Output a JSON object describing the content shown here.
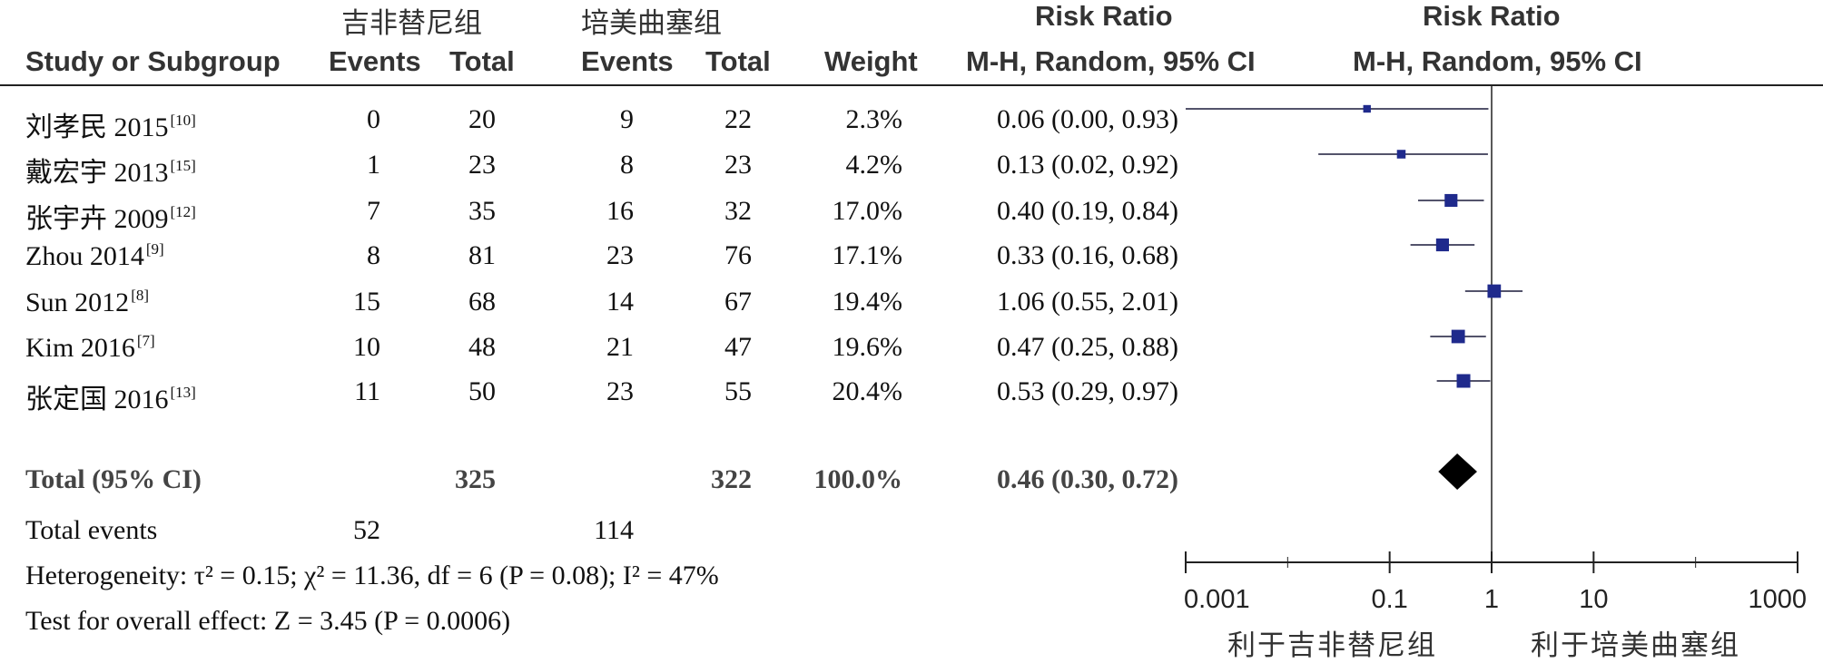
{
  "header": {
    "group1": "吉非替尼组",
    "group2": "培美曲塞组",
    "rr_title_table": "Risk Ratio",
    "rr_title_plot": "Risk Ratio",
    "col_study": "Study or Subgroup",
    "col_events1": "Events",
    "col_total1": "Total",
    "col_events2": "Events",
    "col_total2": "Total",
    "col_weight": "Weight",
    "col_method_table": "M-H, Random, 95% CI",
    "col_method_plot": "M-H, Random, 95% CI"
  },
  "studies": [
    {
      "name": "刘孝民 2015",
      "ref": "[10]",
      "e1": "0",
      "t1": "20",
      "e2": "9",
      "t2": "22",
      "weight": "2.3%",
      "ci": "0.06 (0.00, 0.93)"
    },
    {
      "name": "戴宏宇 2013",
      "ref": "[15]",
      "e1": "1",
      "t1": "23",
      "e2": "8",
      "t2": "23",
      "weight": "4.2%",
      "ci": "0.13 (0.02, 0.92)"
    },
    {
      "name": "张宇卉 2009",
      "ref": "[12]",
      "e1": "7",
      "t1": "35",
      "e2": "16",
      "t2": "32",
      "weight": "17.0%",
      "ci": "0.40 (0.19, 0.84)"
    },
    {
      "name": "Zhou 2014",
      "ref": "[9]",
      "e1": "8",
      "t1": "81",
      "e2": "23",
      "t2": "76",
      "weight": "17.1%",
      "ci": "0.33 (0.16, 0.68)"
    },
    {
      "name": "Sun 2012",
      "ref": "[8]",
      "e1": "15",
      "t1": "68",
      "e2": "14",
      "t2": "67",
      "weight": "19.4%",
      "ci": "1.06 (0.55, 2.01)"
    },
    {
      "name": "Kim 2016",
      "ref": "[7]",
      "e1": "10",
      "t1": "48",
      "e2": "21",
      "t2": "47",
      "weight": "19.6%",
      "ci": "0.47 (0.25, 0.88)"
    },
    {
      "name": "张定国 2016",
      "ref": "[13]",
      "e1": "11",
      "t1": "50",
      "e2": "23",
      "t2": "55",
      "weight": "20.4%",
      "ci": "0.53 (0.29, 0.97)"
    }
  ],
  "total": {
    "label": "Total (95% CI)",
    "t1": "325",
    "t2": "322",
    "weight": "100.0%",
    "ci": "0.46 (0.30, 0.72)"
  },
  "events": {
    "label": "Total events",
    "e1": "52",
    "e2": "114"
  },
  "heterogeneity": "Heterogeneity: τ² = 0.15; χ² = 11.36, df = 6 (P = 0.08); I² = 47%",
  "overall_effect": "Test for overall effect: Z = 3.45 (P = 0.0006)",
  "axis": {
    "ticks": [
      "0.001",
      "0.1",
      "1",
      "10",
      "1000"
    ],
    "favours_left": "利于吉非替尼组",
    "favours_right": "利于培美曲塞组"
  },
  "colors": {
    "marker": "#1f2a8c",
    "diamond": "#000000",
    "line": "#222222"
  },
  "chart_data": {
    "type": "forest",
    "scale": "log",
    "xlim": [
      0.001,
      1000
    ],
    "ticks": [
      0.001,
      0.1,
      1,
      10,
      1000
    ],
    "categories": [
      "刘孝民 2015",
      "戴宏宇 2013",
      "张宇卉 2009",
      "Zhou 2014",
      "Sun 2012",
      "Kim 2016",
      "张定国 2016"
    ],
    "estimates": [
      0.06,
      0.13,
      0.4,
      0.33,
      1.06,
      0.47,
      0.53
    ],
    "lower": [
      0.0,
      0.02,
      0.19,
      0.16,
      0.55,
      0.25,
      0.29
    ],
    "upper": [
      0.93,
      0.92,
      0.84,
      0.68,
      2.01,
      0.88,
      0.97
    ],
    "weights": [
      2.3,
      4.2,
      17.0,
      17.1,
      19.4,
      19.6,
      20.4
    ],
    "pooled": {
      "estimate": 0.46,
      "lower": 0.3,
      "upper": 0.72
    }
  }
}
